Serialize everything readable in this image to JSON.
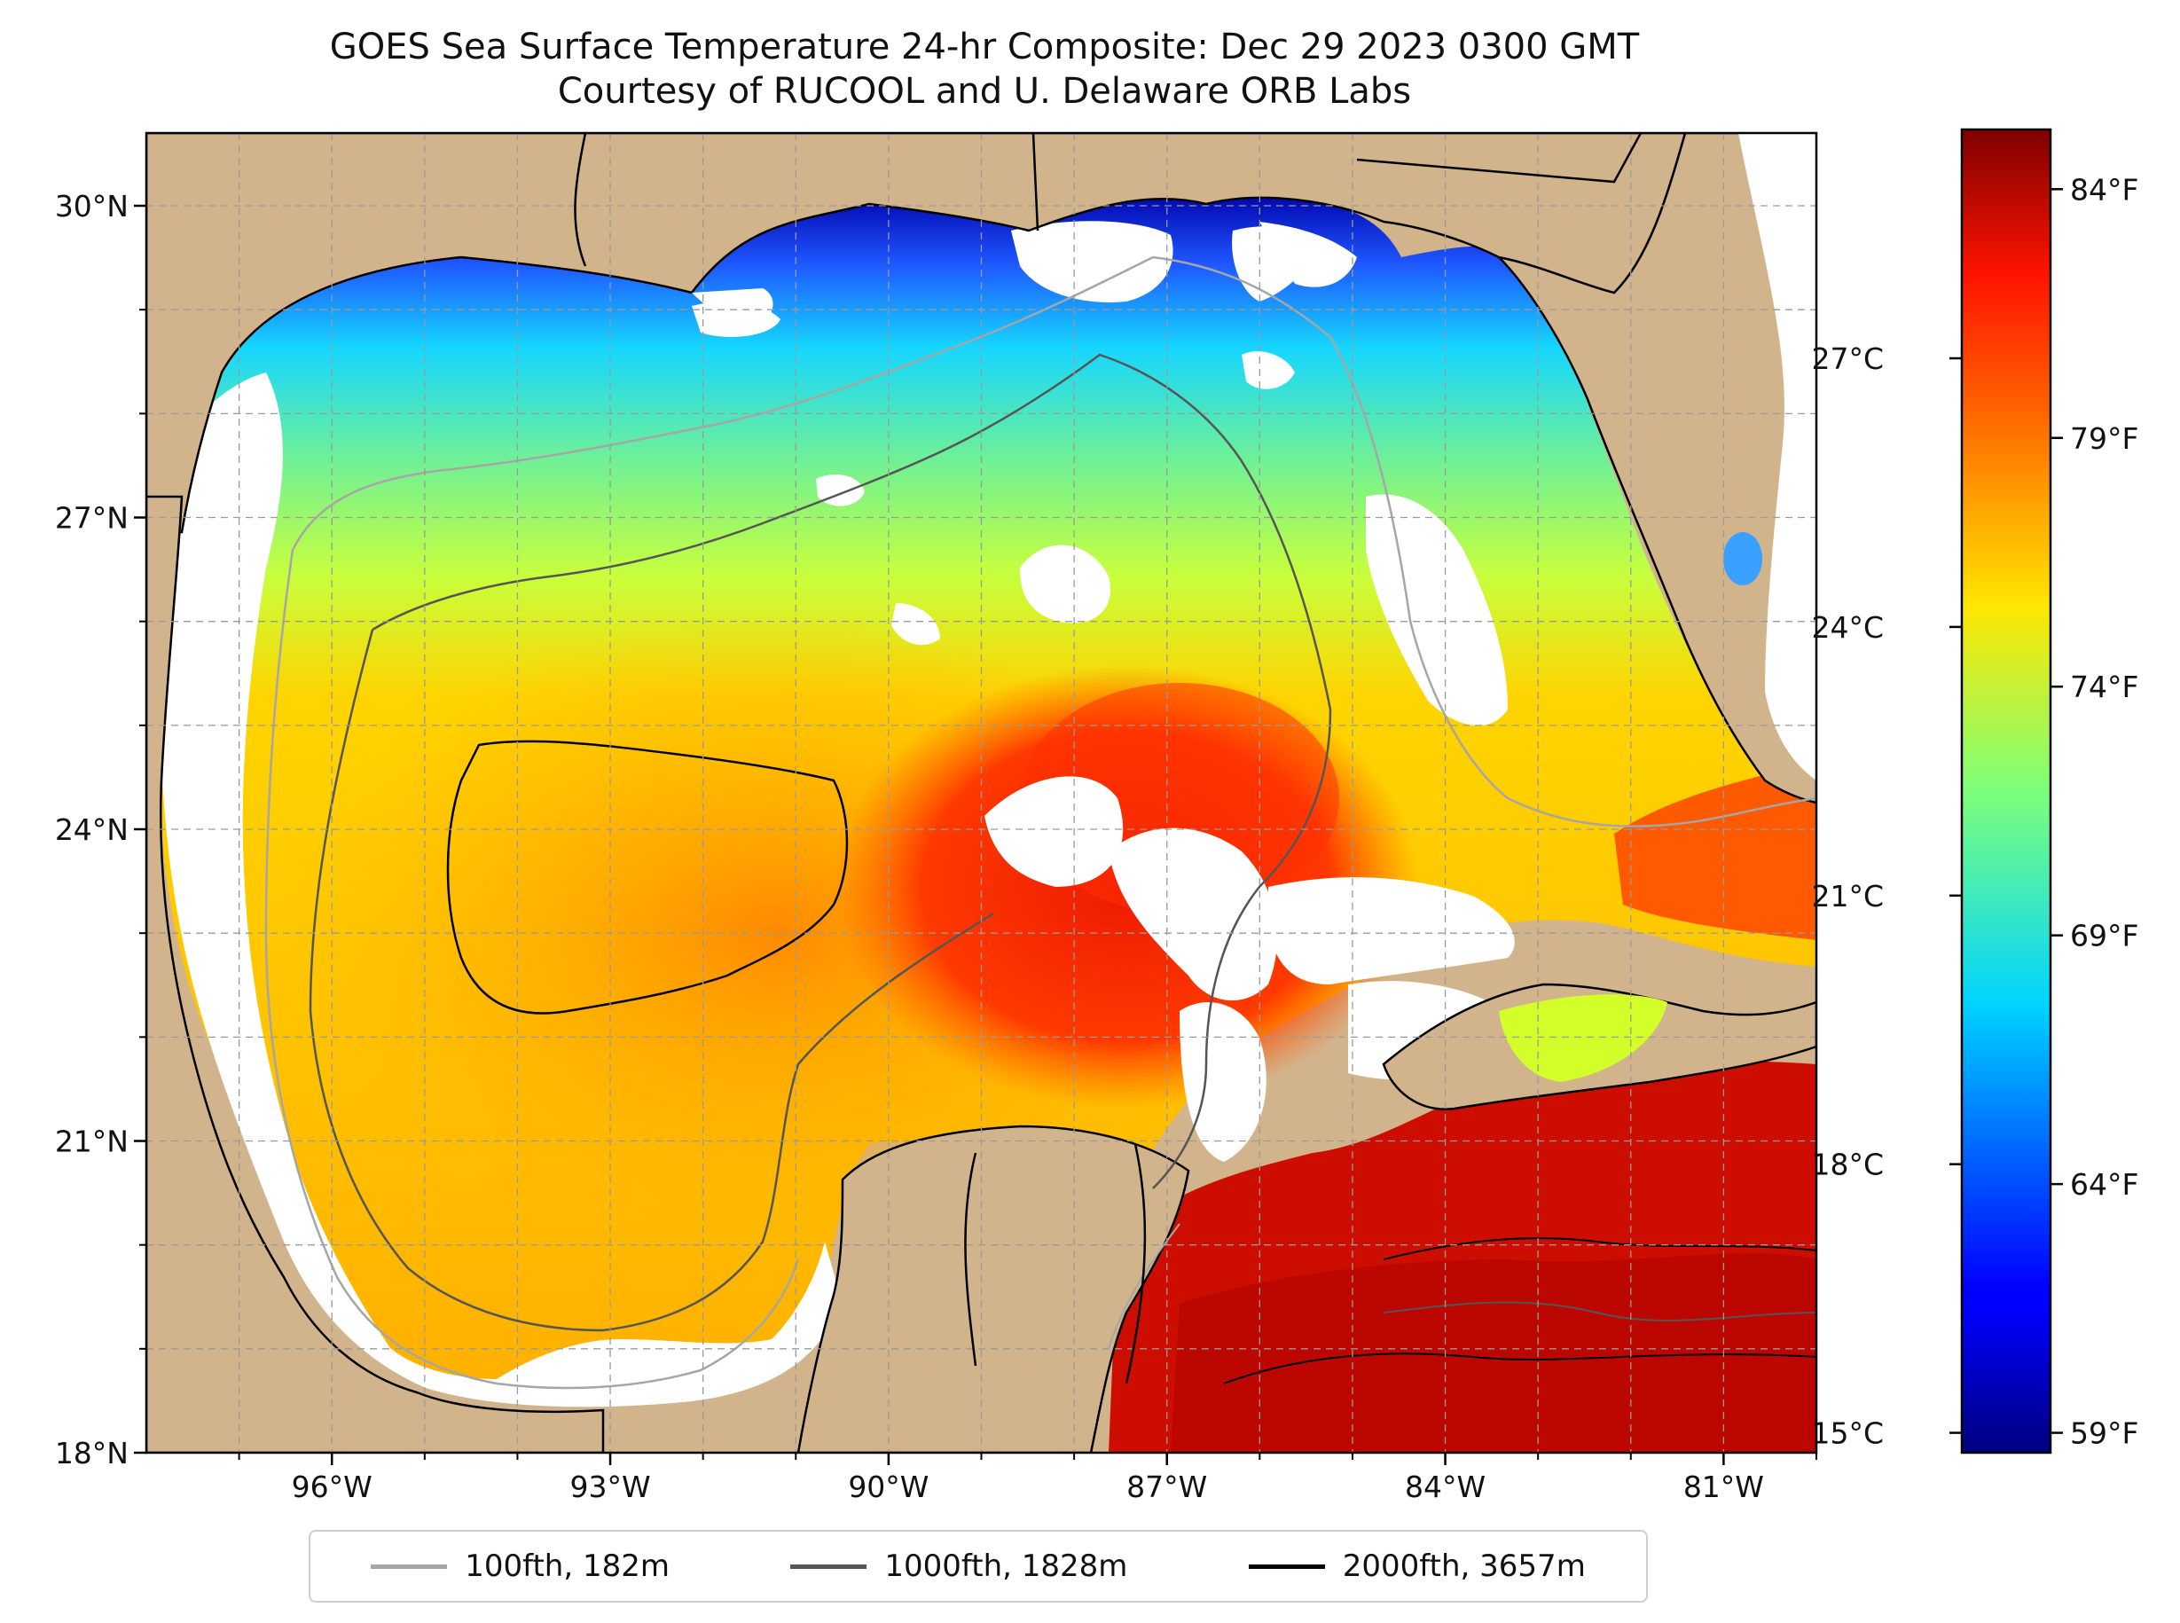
{
  "title": {
    "line1": "GOES Sea Surface Temperature 24-hr Composite: Dec 29 2023 0300 GMT",
    "line2": "Courtesy of RUCOOL and U. Delaware ORB Labs"
  },
  "map": {
    "lon_range": [
      -98,
      -80
    ],
    "lat_range": [
      18,
      30.7
    ],
    "lat_ticks": [
      {
        "value": 18,
        "label": "18°N"
      },
      {
        "value": 21,
        "label": "21°N"
      },
      {
        "value": 24,
        "label": "24°N"
      },
      {
        "value": 27,
        "label": "27°N"
      },
      {
        "value": 30,
        "label": "30°N"
      }
    ],
    "lon_ticks": [
      {
        "value": -96,
        "label": "96°W"
      },
      {
        "value": -93,
        "label": "93°W"
      },
      {
        "value": -90,
        "label": "90°W"
      },
      {
        "value": -87,
        "label": "87°W"
      },
      {
        "value": -84,
        "label": "84°W"
      },
      {
        "value": -81,
        "label": "81°W"
      }
    ],
    "colors": {
      "land": "#d2b48c",
      "cloud_gap": "#ffffff",
      "lake": "#8fb3e0",
      "gridline": "#9a9a9a"
    }
  },
  "colorbar": {
    "colormap": "jet",
    "celsius_ticks": [
      {
        "value": 15,
        "label": "15°C"
      },
      {
        "value": 18,
        "label": "18°C"
      },
      {
        "value": 21,
        "label": "21°C"
      },
      {
        "value": 24,
        "label": "24°C"
      },
      {
        "value": 27,
        "label": "27°C"
      }
    ],
    "fahrenheit_ticks": [
      {
        "value": 59,
        "label": "59°F"
      },
      {
        "value": 64,
        "label": "64°F"
      },
      {
        "value": 69,
        "label": "69°F"
      },
      {
        "value": 74,
        "label": "74°F"
      },
      {
        "value": 79,
        "label": "79°F"
      },
      {
        "value": 84,
        "label": "84°F"
      }
    ],
    "range_f": [
      58.6,
      85.2
    ]
  },
  "legend": {
    "items": [
      {
        "label": "100fth, 182m",
        "color": "#a6a6a6"
      },
      {
        "label": "1000fth, 1828m",
        "color": "#555555"
      },
      {
        "label": "2000fth, 3657m",
        "color": "#000000"
      }
    ]
  }
}
